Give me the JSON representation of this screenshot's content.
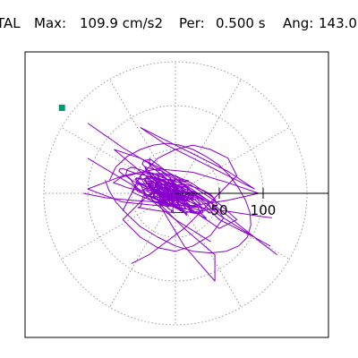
{
  "header": {
    "component": "TAL",
    "max_label": "Max:",
    "max_value": "109.9 cm/s2",
    "per_label": "Per:",
    "per_value": "0.500 s",
    "ang_label": "Ang:",
    "ang_value": "143.0"
  },
  "colors": {
    "trace": "#8800cc",
    "marker": "#009977",
    "grid": "#9a9a9a",
    "axis": "#000000",
    "frame": "#000000"
  },
  "chart_data": {
    "type": "polar-orbit",
    "title": "",
    "xlabel": "",
    "ylabel": "",
    "radial_max": 150,
    "rings": [
      50,
      100,
      150
    ],
    "spoke_angles_deg": [
      0,
      30,
      60,
      90,
      120,
      150,
      180,
      210,
      240,
      270,
      300,
      330
    ],
    "tick_labels": [
      "50",
      "100"
    ],
    "tick_values": [
      50,
      100
    ],
    "peak_value": 109.9,
    "peak_angle_deg": 143.0,
    "marker": {
      "magnitude": 162,
      "angle_deg": 143.0
    },
    "seed": 8,
    "series": [
      {
        "x": [
          -75,
          -68,
          -55,
          -40,
          -25,
          -10,
          5,
          20,
          35,
          50,
          62,
          72,
          80,
          85,
          86,
          82,
          72,
          58,
          40,
          20,
          0,
          -20,
          -40,
          -55,
          -68,
          -76,
          -80
        ],
        "y": [
          15,
          30,
          42,
          50,
          55,
          57,
          55,
          50,
          42,
          32,
          20,
          6,
          -8,
          -22,
          -36,
          -50,
          -60,
          -66,
          -68,
          -66,
          -60,
          -50,
          -38,
          -24,
          -10,
          4,
          15
        ]
      },
      {
        "x": [
          -100,
          -80,
          -60,
          -40,
          -20,
          0,
          20,
          40,
          60,
          80,
          100,
          116
        ],
        "y": [
          80,
          66,
          52,
          40,
          28,
          16,
          4,
          -10,
          -26,
          -42,
          -58,
          -70
        ]
      },
      {
        "x": [
          -100,
          -60,
          -20,
          20,
          60,
          95,
          60,
          20,
          -20,
          -60,
          -100
        ],
        "y": [
          5,
          20,
          28,
          24,
          12,
          0,
          -8,
          -14,
          -14,
          -10,
          5
        ]
      },
      {
        "x": [
          -70,
          -40,
          -10,
          20,
          50,
          70,
          50,
          20,
          -10,
          -40,
          -70
        ],
        "y": [
          50,
          40,
          25,
          8,
          -12,
          -30,
          -40,
          -20,
          0,
          25,
          50
        ]
      },
      {
        "x": [
          -60,
          -40,
          -20,
          0,
          20,
          40,
          55,
          40,
          20,
          0,
          -20,
          -40,
          -60
        ],
        "y": [
          -30,
          -50,
          -62,
          -66,
          -60,
          -48,
          -28,
          -10,
          2,
          8,
          6,
          -10,
          -30
        ]
      },
      {
        "x": [
          -30,
          10,
          50,
          90,
          108,
          90,
          50,
          10,
          -30
        ],
        "y": [
          40,
          10,
          -25,
          -50,
          -60,
          -50,
          -30,
          10,
          40
        ]
      },
      {
        "x": [
          -100,
          -50,
          0,
          40,
          0,
          -50,
          -100
        ],
        "y": [
          40,
          10,
          -30,
          -55,
          -30,
          10,
          40
        ]
      },
      {
        "x": [
          -40,
          -10,
          20,
          60,
          90,
          60,
          20,
          -10,
          -40
        ],
        "y": [
          75,
          60,
          45,
          25,
          5,
          20,
          40,
          55,
          75
        ]
      },
      {
        "x": [
          -20,
          10,
          45,
          45,
          10,
          -20
        ],
        "y": [
          -10,
          -60,
          -100,
          -70,
          -40,
          -10
        ]
      },
      {
        "x": [
          -50,
          -30,
          -10,
          10,
          30,
          50,
          70,
          60,
          40,
          20,
          0,
          -20,
          -40,
          -60
        ],
        "y": [
          -80,
          -70,
          -55,
          -40,
          -20,
          0,
          20,
          40,
          50,
          55,
          50,
          40,
          20,
          -20
        ]
      },
      {
        "x": [
          -105,
          -80,
          -50,
          -20,
          10,
          40,
          70,
          95,
          110
        ],
        "y": [
          0,
          -5,
          -8,
          -10,
          -14,
          -18,
          -22,
          -26,
          -28
        ]
      }
    ]
  }
}
